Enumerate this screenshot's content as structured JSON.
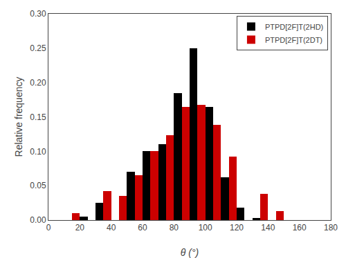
{
  "chart_data": {
    "type": "histogram",
    "bins": [
      0,
      10,
      20,
      30,
      40,
      50,
      60,
      70,
      80,
      90,
      100,
      110,
      120,
      130,
      140,
      150,
      160,
      170,
      180
    ],
    "series": [
      {
        "name": "PTPD[2F]T(2HD)",
        "color": "#000000",
        "values": [
          0.0,
          0.0,
          0.005,
          0.025,
          0.0,
          0.07,
          0.1,
          0.11,
          0.185,
          0.25,
          0.165,
          0.062,
          0.018,
          0.003,
          0.0,
          0.0,
          0.0,
          0.0
        ]
      },
      {
        "name": "PTPD[2F]T(2DT)",
        "color": "#cc0000",
        "values": [
          0.0,
          0.01,
          0.0,
          0.042,
          0.035,
          0.065,
          0.1,
          0.123,
          0.165,
          0.168,
          0.138,
          0.092,
          0.0,
          0.038,
          0.013,
          0.0,
          0.0,
          0.0
        ]
      }
    ],
    "xlabel": "θ (°)",
    "ylabel": "Relative frequency",
    "xlim": [
      0,
      180
    ],
    "ylim": [
      0,
      0.3
    ],
    "xticks": [
      0,
      20,
      40,
      60,
      80,
      100,
      120,
      140,
      160,
      180
    ],
    "yticks": [
      {
        "value": 0.0,
        "label": "0.00"
      },
      0.05,
      {
        "value": 0.1,
        "label": "0.10"
      },
      0.15,
      {
        "value": 0.2,
        "label": "0.20"
      },
      0.25,
      {
        "value": 0.3,
        "label": "0.30"
      }
    ],
    "legend": "upper right",
    "grid": false
  }
}
